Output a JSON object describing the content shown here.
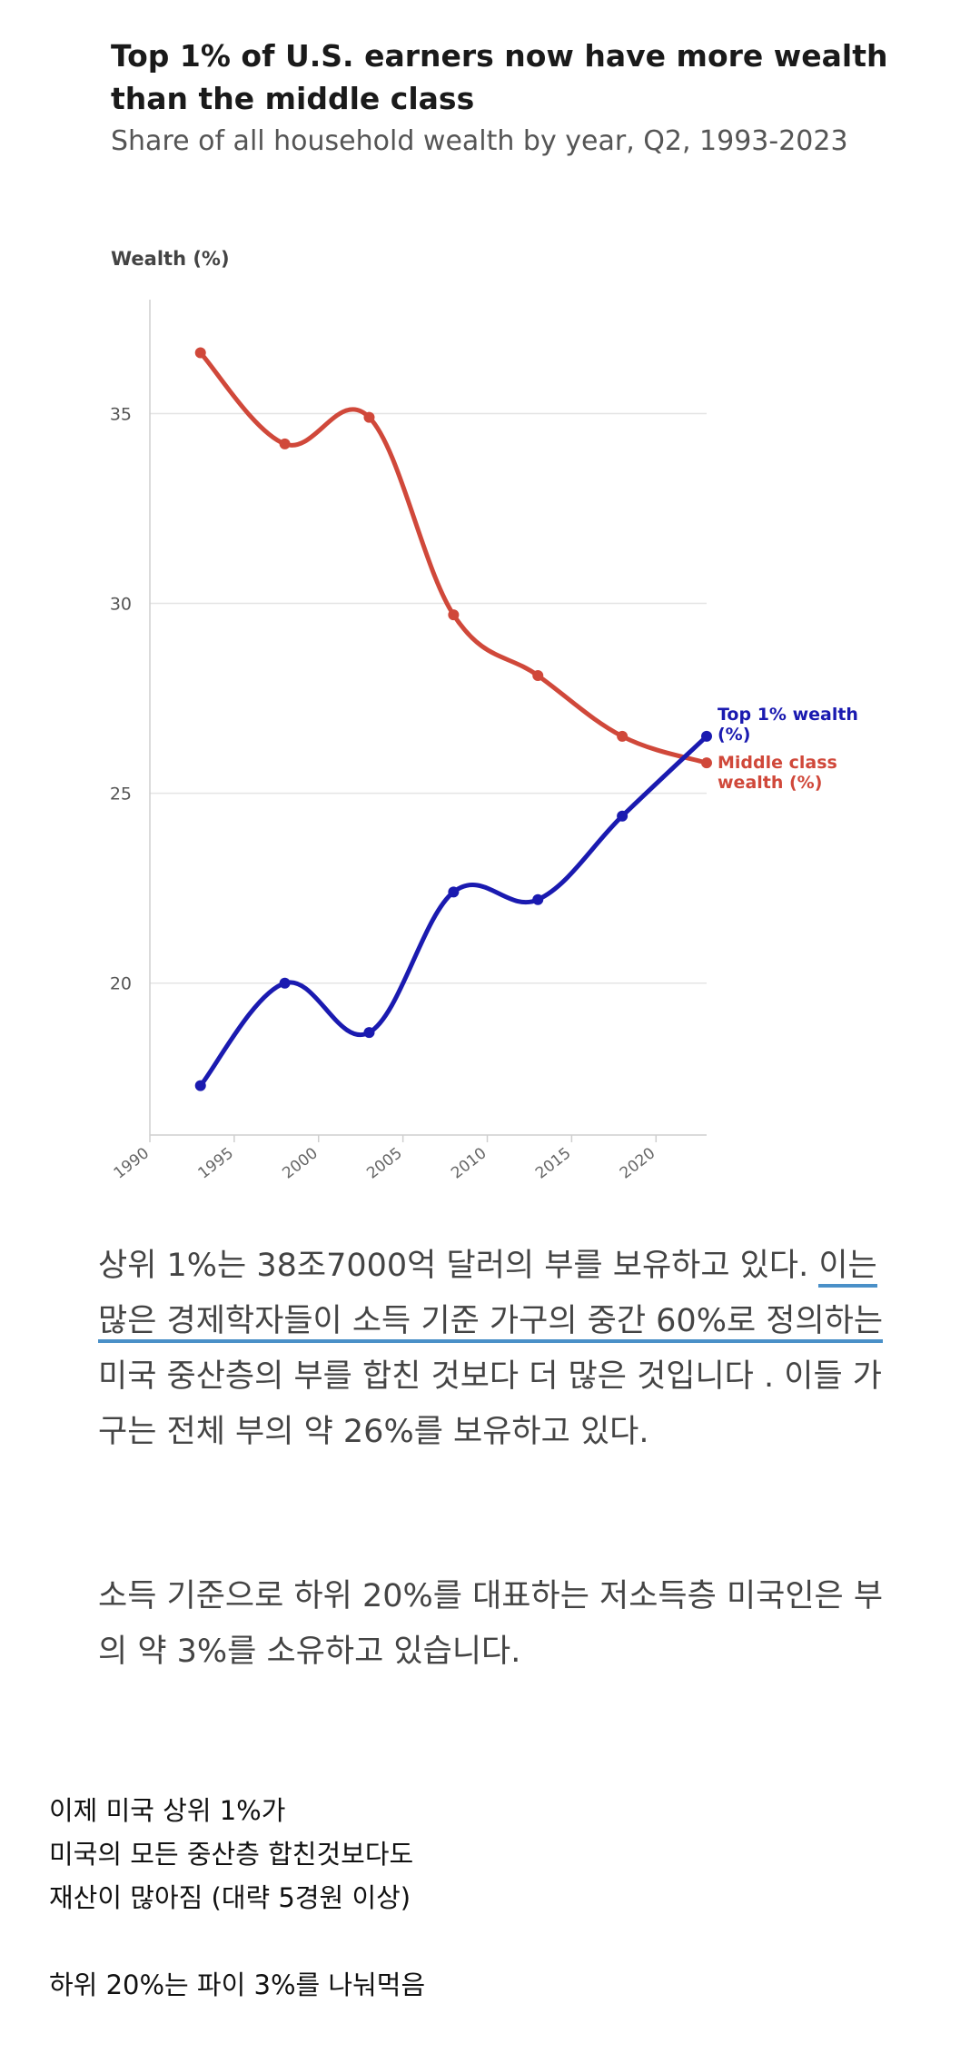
{
  "chart_data": {
    "type": "line",
    "title": "Top 1% of U.S. earners now have more wealth than the middle class",
    "subtitle": "Share of all household wealth by year, Q2, 1993-2023",
    "ylabel": "Wealth (%)",
    "xlim": [
      1990,
      2023
    ],
    "ylim": [
      16,
      38
    ],
    "x_ticks": [
      1990,
      1995,
      2000,
      2005,
      2010,
      2015,
      2020
    ],
    "y_ticks": [
      20,
      25,
      30,
      35
    ],
    "grid": true,
    "legend": "inline-right",
    "series": [
      {
        "name": "Middle class wealth (%)",
        "label_lines": [
          "Middle class",
          "wealth (%)"
        ],
        "color": "#d0483a",
        "x": [
          1993,
          1998,
          2003,
          2008,
          2013,
          2018,
          2023
        ],
        "values": [
          36.6,
          34.2,
          34.9,
          29.7,
          28.1,
          26.5,
          25.8
        ]
      },
      {
        "name": "Top 1% wealth (%)",
        "label_lines": [
          "Top 1% wealth",
          "(%)"
        ],
        "color": "#1a1ab0",
        "x": [
          1993,
          1998,
          2003,
          2008,
          2013,
          2018,
          2023
        ],
        "values": [
          17.3,
          20.0,
          18.7,
          22.4,
          22.2,
          24.4,
          26.5
        ]
      }
    ]
  },
  "paragraphs": {
    "p1_a": "상위 1%는 38조7000억 달러의 부를 보유하고 있다. ",
    "p1_hl1": "이는 많은 경제학자들이 소득 기준 가구",
    "p1_hl2": "의 중간 60%로 정의하는",
    "p1_b": " 미국 중산층의 부를 합친 것보다 더 많은 것입니다 . 이들 가구는 전체 부의 약 26%를 보유하고 있다.",
    "p2": "소득 기준으로 하위 20%를 대표하는 저소득층 미국인은 부의 약 3%를 소유하고 있습니다."
  },
  "notes": {
    "line1": "이제 미국 상위 1%가",
    "line2": "미국의 모든 중산층 합친것보다도",
    "line3": "재산이 많아짐 (대략 5경원 이상)",
    "line4": "하위 20%는 파이 3%를 나눠먹음"
  }
}
